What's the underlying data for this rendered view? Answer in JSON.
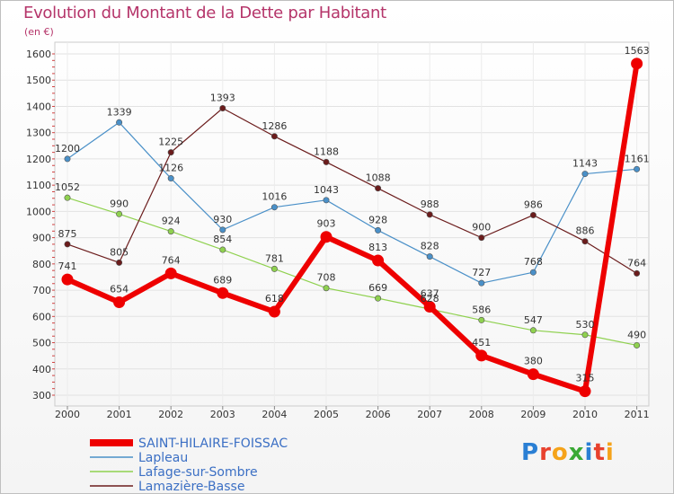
{
  "title": "Evolution du Montant de la Dette par Habitant",
  "subtitle": "(en €)",
  "logo": {
    "text": "Proxiti",
    "colors": [
      "#2a7fd4",
      "#e8412d",
      "#f5a31a",
      "#3aa935",
      "#2a7fd4",
      "#e8412d",
      "#f5a31a"
    ]
  },
  "chart_data": {
    "type": "line",
    "title": "Evolution du Montant de la Dette par Habitant",
    "ylabel": "(en €)",
    "xlabel": "",
    "x": [
      "2000",
      "2001",
      "2002",
      "2003",
      "2004",
      "2005",
      "2006",
      "2007",
      "2008",
      "2009",
      "2010",
      "2011"
    ],
    "ylim": [
      300,
      1600
    ],
    "yticks": [
      300,
      400,
      500,
      600,
      700,
      800,
      900,
      1000,
      1100,
      1200,
      1300,
      1400,
      1500,
      1600
    ],
    "grid": true,
    "legend_position": "bottom-left",
    "series": [
      {
        "name": "SAINT-HILAIRE-FOISSAC",
        "color": "#ee0000",
        "values": [
          741,
          654,
          764,
          689,
          618,
          903,
          813,
          637,
          451,
          380,
          315,
          1563
        ]
      },
      {
        "name": "Lapleau",
        "color": "#4a90c8",
        "values": [
          1200,
          1339,
          1126,
          930,
          1016,
          1043,
          928,
          828,
          727,
          768,
          1143,
          1161
        ]
      },
      {
        "name": "Lafage-sur-Sombre",
        "color": "#8fd14f",
        "values": [
          1052,
          990,
          924,
          854,
          781,
          708,
          669,
          628,
          586,
          547,
          530,
          490
        ]
      },
      {
        "name": "Lamazière-Basse",
        "color": "#6b1c1c",
        "values": [
          875,
          805,
          1225,
          1393,
          1286,
          1188,
          1088,
          988,
          900,
          986,
          886,
          764
        ]
      }
    ]
  }
}
